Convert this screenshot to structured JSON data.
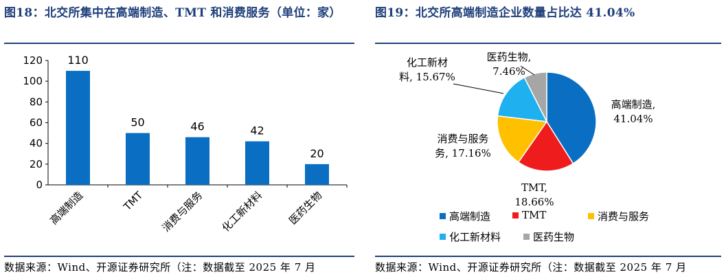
{
  "left_panel": {
    "title": "图18：北交所集中在高端制造、TMT 和消费服务（单位：家）",
    "source": "数据来源：Wind、开源证券研究所（注：数据截至 2025 年 7 月"
  },
  "right_panel": {
    "title": "图19：北交所高端制造企业数量占比达 41.04%",
    "source": "数据来源：Wind、开源证券研究所（注：数据截至 2025 年 7 月"
  },
  "colors": {
    "title": "#1f3f7a",
    "bar": "#0a6fc2",
    "pie": [
      "#0a6fc2",
      "#ee1c1c",
      "#ffc000",
      "#1fb0ef",
      "#a6a6a6"
    ]
  },
  "chart_data": [
    {
      "type": "bar",
      "categories": [
        "高端制造",
        "TMT",
        "消费与服务",
        "化工新材料",
        "医药生物"
      ],
      "values": [
        110,
        50,
        46,
        42,
        20
      ],
      "data_labels": [
        "110",
        "50",
        "46",
        "42",
        "20"
      ],
      "yticks": [
        "0",
        "20",
        "40",
        "60",
        "80",
        "100",
        "120"
      ],
      "ylim": [
        0,
        120
      ],
      "grid": false,
      "title": "",
      "xlabel": "",
      "ylabel": ""
    },
    {
      "type": "pie",
      "categories": [
        "高端制造",
        "TMT",
        "消费与服务",
        "化工新材料",
        "医药生物"
      ],
      "values": [
        41.04,
        18.66,
        17.16,
        15.67,
        7.46
      ],
      "slice_labels": [
        [
          "高端制造,",
          "41.04%"
        ],
        [
          "TMT,",
          "18.66%"
        ],
        [
          "消费与服务",
          "务, 17.16%"
        ],
        [
          "化工新材",
          "料, 15.67%"
        ],
        [
          "医药生物,",
          "7.46%"
        ]
      ],
      "legend": [
        "高端制造",
        "TMT",
        "消费与服务",
        "化工新材料",
        "医药生物"
      ],
      "legend_placement": "bottom"
    }
  ]
}
